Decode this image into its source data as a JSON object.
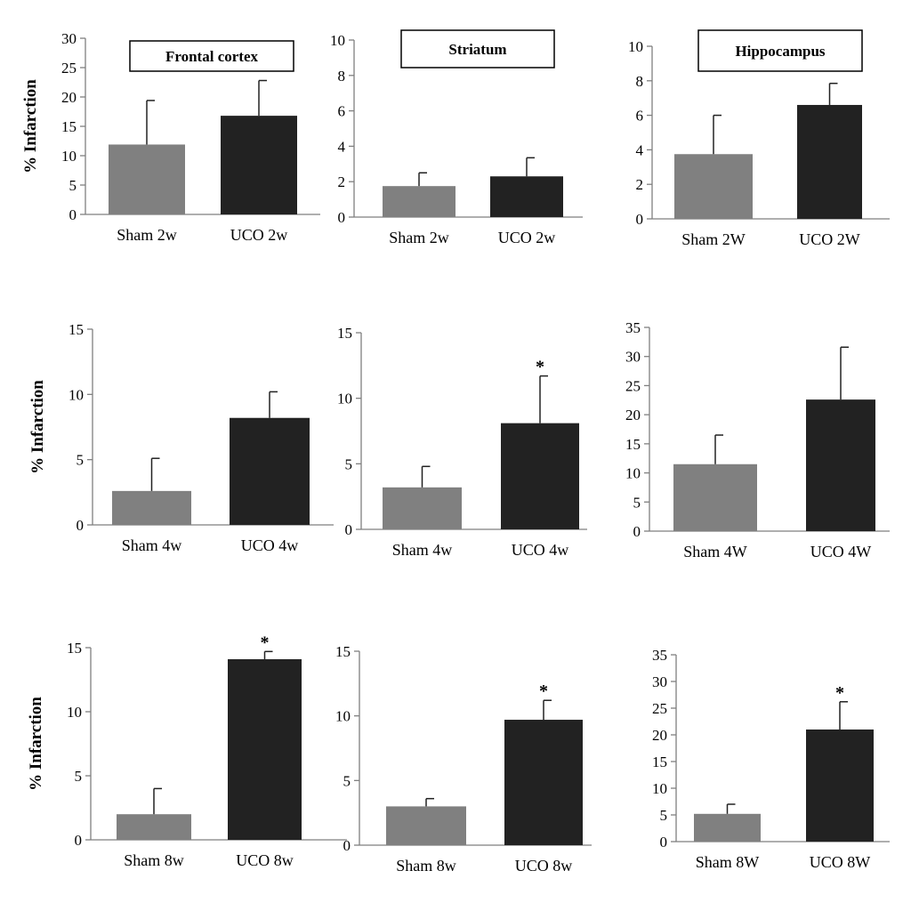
{
  "chart_data": [
    {
      "type": "bar",
      "title": "Frontal cortex",
      "ylabel": "% Infarction",
      "categories": [
        "Sham 2w",
        "UCO 2w"
      ],
      "values": [
        11.9,
        16.8
      ],
      "errors": [
        7.5,
        6.0
      ],
      "significant": [
        false,
        false
      ],
      "ylim": [
        0,
        30
      ],
      "yticks": [
        0,
        5,
        10,
        15,
        20,
        25,
        30
      ]
    },
    {
      "type": "bar",
      "title": "Striatum",
      "ylabel": "",
      "categories": [
        "Sham 2w",
        "UCO 2w"
      ],
      "values": [
        1.75,
        2.3
      ],
      "errors": [
        0.75,
        1.05
      ],
      "significant": [
        false,
        false
      ],
      "ylim": [
        0,
        10
      ],
      "yticks": [
        0,
        2,
        4,
        6,
        8,
        10
      ]
    },
    {
      "type": "bar",
      "title": "Hippocampus",
      "ylabel": "",
      "categories": [
        "Sham 2W",
        "UCO 2W"
      ],
      "values": [
        3.75,
        6.6
      ],
      "errors": [
        2.25,
        1.25
      ],
      "significant": [
        false,
        false
      ],
      "ylim": [
        0,
        10
      ],
      "yticks": [
        0,
        2,
        4,
        6,
        8,
        10
      ]
    },
    {
      "type": "bar",
      "title": "",
      "ylabel": "% Infarction",
      "categories": [
        "Sham 4w",
        "UCO 4w"
      ],
      "values": [
        2.6,
        8.2
      ],
      "errors": [
        2.5,
        2.0
      ],
      "significant": [
        false,
        false
      ],
      "ylim": [
        0,
        15
      ],
      "yticks": [
        0,
        5,
        10,
        15
      ]
    },
    {
      "type": "bar",
      "title": "",
      "ylabel": "",
      "categories": [
        "Sham 4w",
        "UCO 4w"
      ],
      "values": [
        3.2,
        8.1
      ],
      "errors": [
        1.6,
        3.6
      ],
      "significant": [
        false,
        true
      ],
      "ylim": [
        0,
        15
      ],
      "yticks": [
        0,
        5,
        10,
        15
      ]
    },
    {
      "type": "bar",
      "title": "",
      "ylabel": "",
      "categories": [
        "Sham 4W",
        "UCO 4W"
      ],
      "values": [
        11.5,
        22.6
      ],
      "errors": [
        5.0,
        9.0
      ],
      "significant": [
        false,
        false
      ],
      "ylim": [
        0,
        35
      ],
      "yticks": [
        0,
        5,
        10,
        15,
        20,
        25,
        30,
        35
      ]
    },
    {
      "type": "bar",
      "title": "",
      "ylabel": "% Infarction",
      "categories": [
        "Sham 8w",
        "UCO 8w"
      ],
      "values": [
        2.0,
        14.1
      ],
      "errors": [
        2.0,
        0.6
      ],
      "significant": [
        false,
        true
      ],
      "ylim": [
        0,
        15
      ],
      "yticks": [
        0,
        5,
        10,
        15
      ]
    },
    {
      "type": "bar",
      "title": "",
      "ylabel": "",
      "categories": [
        "Sham 8w",
        "UCO 8w"
      ],
      "values": [
        3.0,
        9.7
      ],
      "errors": [
        0.6,
        1.5
      ],
      "significant": [
        false,
        true
      ],
      "ylim": [
        0,
        15
      ],
      "yticks": [
        0,
        5,
        10,
        15
      ]
    },
    {
      "type": "bar",
      "title": "",
      "ylabel": "",
      "categories": [
        "Sham 8W",
        "UCO 8W"
      ],
      "values": [
        5.2,
        21.0
      ],
      "errors": [
        1.8,
        5.2
      ],
      "significant": [
        false,
        true
      ],
      "ylim": [
        0,
        35
      ],
      "yticks": [
        0,
        5,
        10,
        15,
        20,
        25,
        30,
        35
      ]
    }
  ],
  "colors": {
    "sham": "#808080",
    "uco": "#222222"
  },
  "significance_mark": "*"
}
